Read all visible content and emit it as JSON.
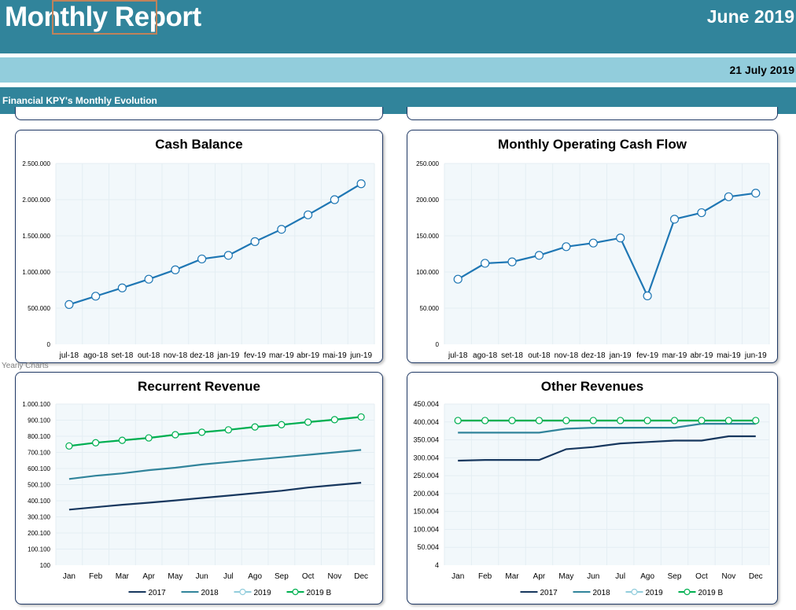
{
  "header": {
    "title": "Monthly Report",
    "period": "June 2019",
    "date": "21 July 2019",
    "section": "Financial KPY's Monthly Evolution"
  },
  "sheet_note": "Yearly Charts",
  "colors": {
    "header": "#31849b",
    "datebar": "#92cddc",
    "line_blue": "#1f77b4",
    "c2017": "#17375e",
    "c2018": "#31849b",
    "c2019": "#92cddc",
    "c2019b": "#00b050",
    "plot_bg": "#f2f8fb"
  },
  "chart_data": [
    {
      "type": "line",
      "title": "Cash Balance",
      "categories": [
        "jul-18",
        "ago-18",
        "set-18",
        "out-18",
        "nov-18",
        "dez-18",
        "jan-19",
        "fev-19",
        "mar-19",
        "abr-19",
        "mai-19",
        "jun-19"
      ],
      "series": [
        {
          "values": [
            550000,
            665000,
            780000,
            900000,
            1030000,
            1180000,
            1230000,
            1420000,
            1590000,
            1790000,
            2000000,
            2220000
          ]
        }
      ],
      "ylim": [
        0,
        2500000
      ],
      "yticks": [
        "0",
        "500.000",
        "1.000.000",
        "1.500.000",
        "2.000.000",
        "2.500.000"
      ],
      "grid": true,
      "markers": true
    },
    {
      "type": "line",
      "title": "Monthly Operating Cash Flow",
      "categories": [
        "jul-18",
        "ago-18",
        "set-18",
        "out-18",
        "nov-18",
        "dez-18",
        "jan-19",
        "fev-19",
        "mar-19",
        "abr-19",
        "mai-19",
        "jun-19"
      ],
      "series": [
        {
          "values": [
            90000,
            112000,
            114000,
            123000,
            135000,
            140000,
            147000,
            67000,
            173000,
            182000,
            204000,
            209000
          ]
        }
      ],
      "ylim": [
        0,
        250000
      ],
      "yticks": [
        "0",
        "50.000",
        "100.000",
        "150.000",
        "200.000",
        "250.000"
      ],
      "grid": true,
      "markers": true
    },
    {
      "type": "line",
      "title": "Recurrent Revenue",
      "categories": [
        "Jan",
        "Feb",
        "Mar",
        "Apr",
        "May",
        "Jun",
        "Jul",
        "Ago",
        "Sep",
        "Oct",
        "Nov",
        "Dec"
      ],
      "series": [
        {
          "name": "2017",
          "values": [
            345000,
            360000,
            375000,
            388000,
            402000,
            417000,
            432000,
            447000,
            462000,
            482000,
            497000,
            512000
          ]
        },
        {
          "name": "2018",
          "values": [
            535000,
            555000,
            570000,
            590000,
            605000,
            625000,
            640000,
            655000,
            670000,
            685000,
            700000,
            715000
          ]
        },
        {
          "name": "2019",
          "values": [
            740000,
            760000,
            775000,
            790000,
            810000,
            825000,
            840000,
            858000,
            872000,
            888000,
            903000,
            920000
          ]
        },
        {
          "name": "2019 B",
          "values": [
            740000,
            760000,
            775000,
            790000,
            810000,
            825000,
            840000,
            858000,
            872000,
            888000,
            903000,
            920000
          ]
        }
      ],
      "ylim": [
        100,
        1000100
      ],
      "yticks": [
        "100",
        "100.100",
        "200.100",
        "300.100",
        "400.100",
        "500.100",
        "600.100",
        "700.100",
        "800.100",
        "900.100",
        "1.000.100"
      ],
      "legend": "bottom",
      "grid": true
    },
    {
      "type": "line",
      "title": "Other Revenues",
      "categories": [
        "Jan",
        "Feb",
        "Mar",
        "Apr",
        "May",
        "Jun",
        "Jul",
        "Ago",
        "Sep",
        "Oct",
        "Nov",
        "Dec"
      ],
      "series": [
        {
          "name": "2017",
          "values": [
            292000,
            294000,
            294000,
            294000,
            324000,
            330000,
            340000,
            344000,
            348000,
            348000,
            360000,
            360000
          ]
        },
        {
          "name": "2018",
          "values": [
            370000,
            370000,
            370000,
            370000,
            381000,
            384000,
            384000,
            384000,
            384000,
            395000,
            395000,
            395000
          ]
        },
        {
          "name": "2019",
          "values": [
            404000,
            404000,
            404000,
            404000,
            404000,
            404000,
            404000,
            404000,
            404000,
            404000,
            404000,
            404000
          ]
        },
        {
          "name": "2019 B",
          "values": [
            404000,
            404000,
            404000,
            404000,
            404000,
            404000,
            404000,
            404000,
            404000,
            404000,
            404000,
            404000
          ]
        }
      ],
      "ylim": [
        4,
        450004
      ],
      "yticks": [
        "4",
        "50.004",
        "100.004",
        "150.004",
        "200.004",
        "250.004",
        "300.004",
        "350.004",
        "400.004",
        "450.004"
      ],
      "legend": "bottom",
      "grid": true
    }
  ]
}
